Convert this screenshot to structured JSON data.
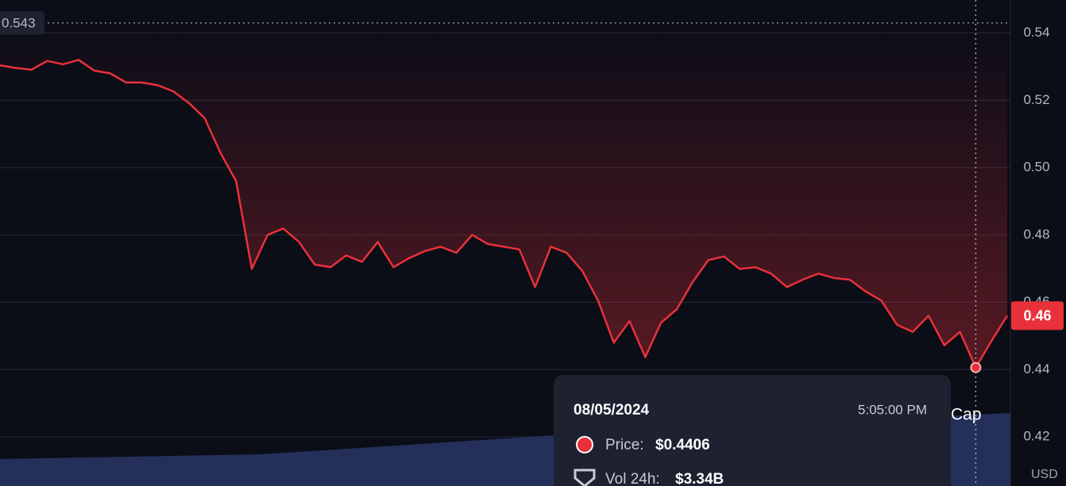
{
  "chart_data": {
    "type": "line",
    "series": [
      {
        "color": "#e8313a",
        "values": [
          0.5304,
          0.5296,
          0.5291,
          0.5317,
          0.5307,
          0.532,
          0.5288,
          0.528,
          0.5253,
          0.5253,
          0.5245,
          0.5227,
          0.5192,
          0.5147,
          0.5045,
          0.496,
          0.4699,
          0.48,
          0.4819,
          0.4779,
          0.4712,
          0.4704,
          0.4739,
          0.472,
          0.4779,
          0.4704,
          0.4731,
          0.4752,
          0.4765,
          0.4747,
          0.48,
          0.4773,
          0.4765,
          0.4757,
          0.4645,
          0.4765,
          0.4747,
          0.4693,
          0.4605,
          0.448,
          0.4544,
          0.4437,
          0.4539,
          0.4579,
          0.4659,
          0.4725,
          0.4736,
          0.4699,
          0.4704,
          0.4685,
          0.4645,
          0.4667,
          0.4685,
          0.4672,
          0.4667,
          0.4632,
          0.4605,
          0.4533,
          0.4512,
          0.456,
          0.4472,
          0.4512,
          0.4406,
          0.4485,
          0.456
        ]
      }
    ],
    "ylim": [
      0.4054,
      0.5498
    ],
    "yticks": [
      0.42,
      0.44,
      0.46,
      0.48,
      {
        "value": 0.5,
        "label": "0.50"
      },
      0.52,
      0.54
    ],
    "grid": true,
    "high": 0.543,
    "current_price": 0.46,
    "currency": "USD",
    "overlay_text": "Cap",
    "tooltip": {
      "date": "08/05/2024",
      "time": "5:05:00 PM",
      "price_label": "Price:",
      "price": "$0.4406",
      "volume_label": "Vol 24h:",
      "volume": "$3.34B"
    }
  }
}
